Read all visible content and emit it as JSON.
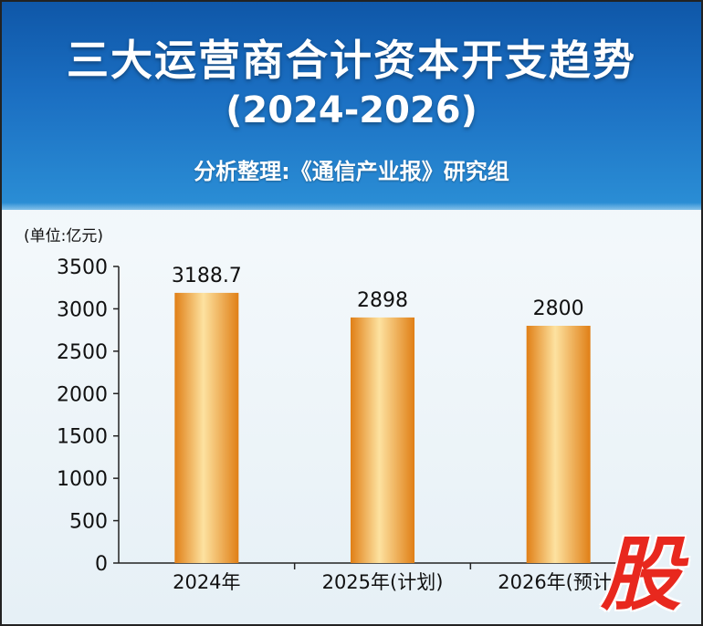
{
  "header": {
    "title": "三大运营商合计资本开支趋势",
    "years": "(2024-2026)",
    "source": "分析整理:《通信产业报》研究组"
  },
  "unit_label": "(单位:亿元)",
  "watermark": "股",
  "colors": {
    "bar_dark": "#e07f16",
    "bar_light": "#fde2a0",
    "header": "#1b6fc2",
    "watermark": "#e8281e"
  },
  "chart_data": {
    "type": "bar",
    "categories": [
      "2024年",
      "2025年(计划)",
      "2026年(预计)"
    ],
    "values": [
      3188.7,
      2898,
      2800
    ],
    "value_labels": [
      "3188.7",
      "2898",
      "2800"
    ],
    "title": "三大运营商合计资本开支趋势",
    "ylabel": "(单位:亿元)",
    "ylim": [
      0,
      3500
    ],
    "yticks": [
      0,
      500,
      1000,
      1500,
      2000,
      2500,
      3000,
      3500
    ],
    "grid": false,
    "legend": "none"
  }
}
